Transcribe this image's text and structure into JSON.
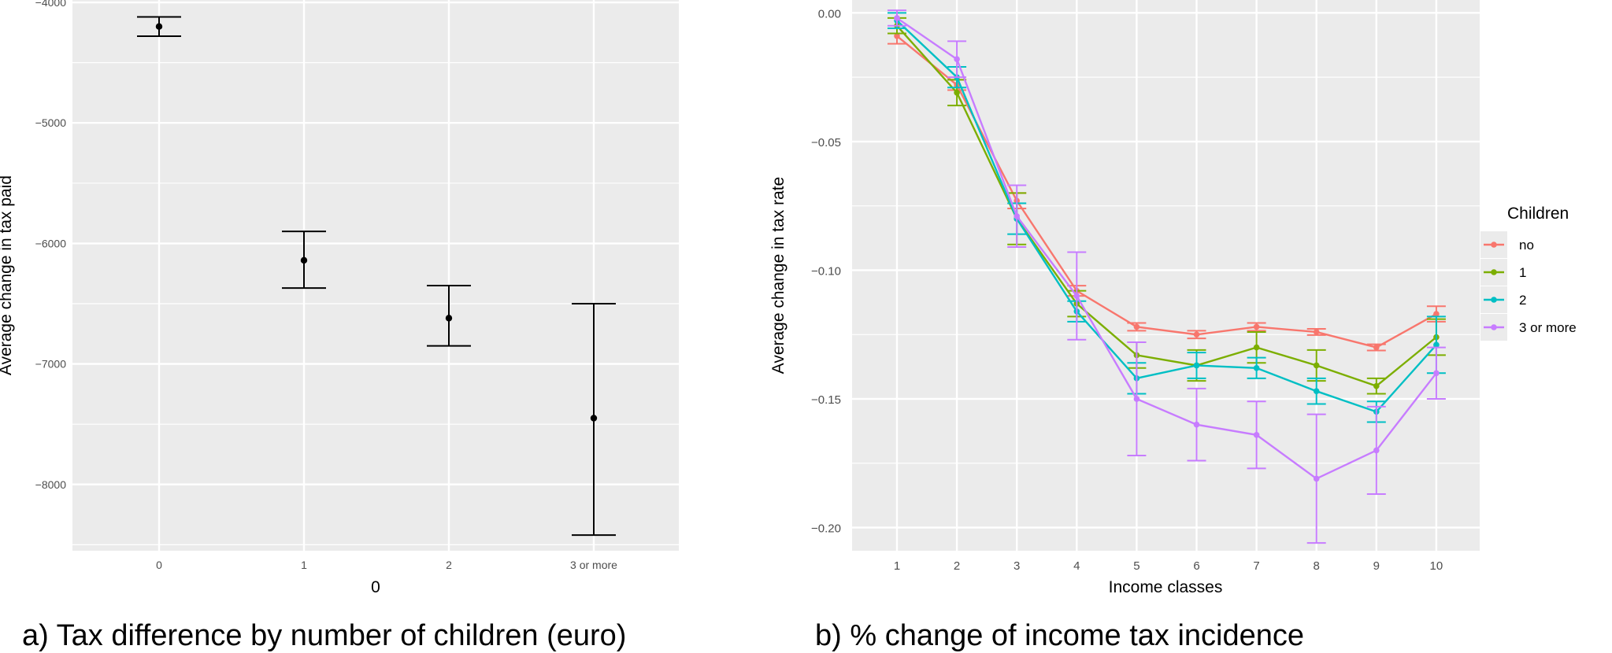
{
  "chart_data": [
    {
      "type": "errorbar",
      "caption": "a)  Tax difference by number of children (euro)",
      "xlabel": "0",
      "ylabel": "Average change in tax paid",
      "categories": [
        "0",
        "1",
        "2",
        "3 or more"
      ],
      "ylim": [
        -8550,
        -3980
      ],
      "yticks": [
        -4000,
        -5000,
        -6000,
        -7000,
        -8000
      ],
      "points": [
        {
          "x": "0",
          "y": -4200,
          "lower": -4280,
          "upper": -4120
        },
        {
          "x": "1",
          "y": -6140,
          "lower": -6370,
          "upper": -5900
        },
        {
          "x": "2",
          "y": -6620,
          "lower": -6850,
          "upper": -6350
        },
        {
          "x": "3 or more",
          "y": -7450,
          "lower": -8420,
          "upper": -6500
        }
      ],
      "grid": true
    },
    {
      "type": "line",
      "caption": "b)  % change of income tax incidence",
      "xlabel": "Income classes",
      "ylabel": "Average change in tax rate",
      "x": [
        1,
        2,
        3,
        4,
        5,
        6,
        7,
        8,
        9,
        10
      ],
      "ylim": [
        -0.209,
        0.005
      ],
      "yticks": [
        0.0,
        -0.05,
        -0.1,
        -0.15,
        -0.2
      ],
      "ytick_labels": [
        "0.00",
        "−0.05",
        "−0.10",
        "−0.15",
        "−0.20"
      ],
      "legend": {
        "title": "Children",
        "placement": "right"
      },
      "grid": true,
      "series": [
        {
          "name": "no",
          "color": "#F8766D",
          "values": [
            -0.009,
            -0.028,
            -0.073,
            -0.108,
            -0.122,
            -0.125,
            -0.122,
            -0.124,
            -0.13,
            -0.117
          ],
          "err": [
            0.003,
            0.002,
            0.003,
            0.002,
            0.0015,
            0.0015,
            0.0015,
            0.0012,
            0.0012,
            0.003
          ]
        },
        {
          "name": "1",
          "color": "#7CAE00",
          "values": [
            -0.005,
            -0.031,
            -0.08,
            -0.113,
            -0.133,
            -0.137,
            -0.13,
            -0.137,
            -0.145,
            -0.126
          ],
          "err": [
            0.003,
            0.005,
            0.01,
            0.005,
            0.005,
            0.006,
            0.006,
            0.006,
            0.003,
            0.007
          ]
        },
        {
          "name": "2",
          "color": "#00BFC4",
          "values": [
            -0.003,
            -0.025,
            -0.08,
            -0.116,
            -0.142,
            -0.137,
            -0.138,
            -0.147,
            -0.155,
            -0.129
          ],
          "err": [
            0.003,
            0.004,
            0.006,
            0.004,
            0.006,
            0.005,
            0.004,
            0.005,
            0.004,
            0.011
          ]
        },
        {
          "name": "3 or more",
          "color": "#C77CFF",
          "values": [
            -0.002,
            -0.018,
            -0.079,
            -0.11,
            -0.15,
            -0.16,
            -0.164,
            -0.181,
            -0.17,
            -0.14
          ],
          "err": [
            0.003,
            0.007,
            0.012,
            0.017,
            0.022,
            0.014,
            0.013,
            0.025,
            0.017,
            0.01
          ]
        }
      ]
    }
  ]
}
